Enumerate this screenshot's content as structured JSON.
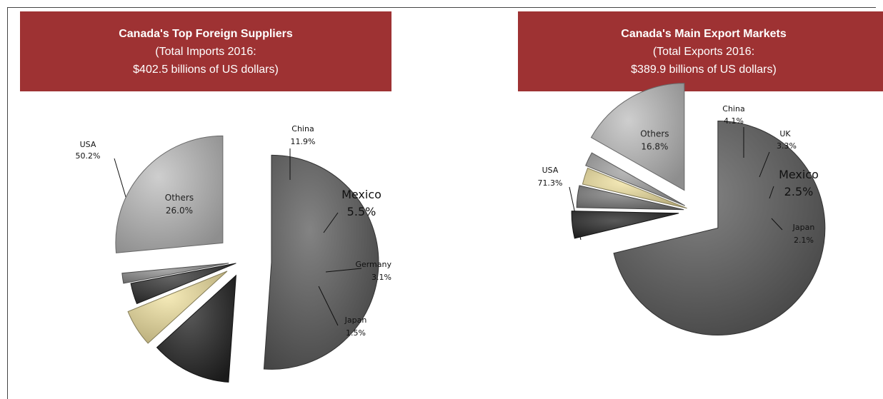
{
  "chart_data": [
    {
      "type": "pie",
      "title": "Canada's Top Foreign Suppliers",
      "subtitle_line1": "(Total Imports 2016:",
      "subtitle_line2": "$402.5 billions of US dollars)",
      "slices": [
        {
          "name": "USA",
          "value": 50.2,
          "label": "50.2%",
          "color": "#5a5a5a"
        },
        {
          "name": "China",
          "value": 11.9,
          "label": "11.9%",
          "color": "#222222"
        },
        {
          "name": "Mexico",
          "value": 5.5,
          "label": "5.5%",
          "color": "#f2e3a0"
        },
        {
          "name": "Germany",
          "value": 3.1,
          "label": "3.1%",
          "color": "#303030"
        },
        {
          "name": "Japan",
          "value": 1.5,
          "label": "1.5%",
          "color": "#8c8c8c"
        },
        {
          "name": "Others",
          "value": 26.0,
          "label": "26.0%",
          "color": "#bdbdbd"
        }
      ]
    },
    {
      "type": "pie",
      "title": "Canada's Main Export Markets",
      "subtitle_line1": "(Total Exports 2016:",
      "subtitle_line2": "$389.9 billions of US dollars)",
      "slices": [
        {
          "name": "USA",
          "value": 71.3,
          "label": "71.3%",
          "color": "#5a5a5a"
        },
        {
          "name": "China",
          "value": 4.1,
          "label": "4.1%",
          "color": "#222222"
        },
        {
          "name": "UK",
          "value": 3.3,
          "label": "3.3%",
          "color": "#7a7a7a"
        },
        {
          "name": "Mexico",
          "value": 2.5,
          "label": "2.5%",
          "color": "#f2e3a0"
        },
        {
          "name": "Japan",
          "value": 2.1,
          "label": "2.1%",
          "color": "#a0a0a0"
        },
        {
          "name": "Others",
          "value": 16.8,
          "label": "16.8%",
          "color": "#bdbdbd"
        }
      ]
    }
  ]
}
